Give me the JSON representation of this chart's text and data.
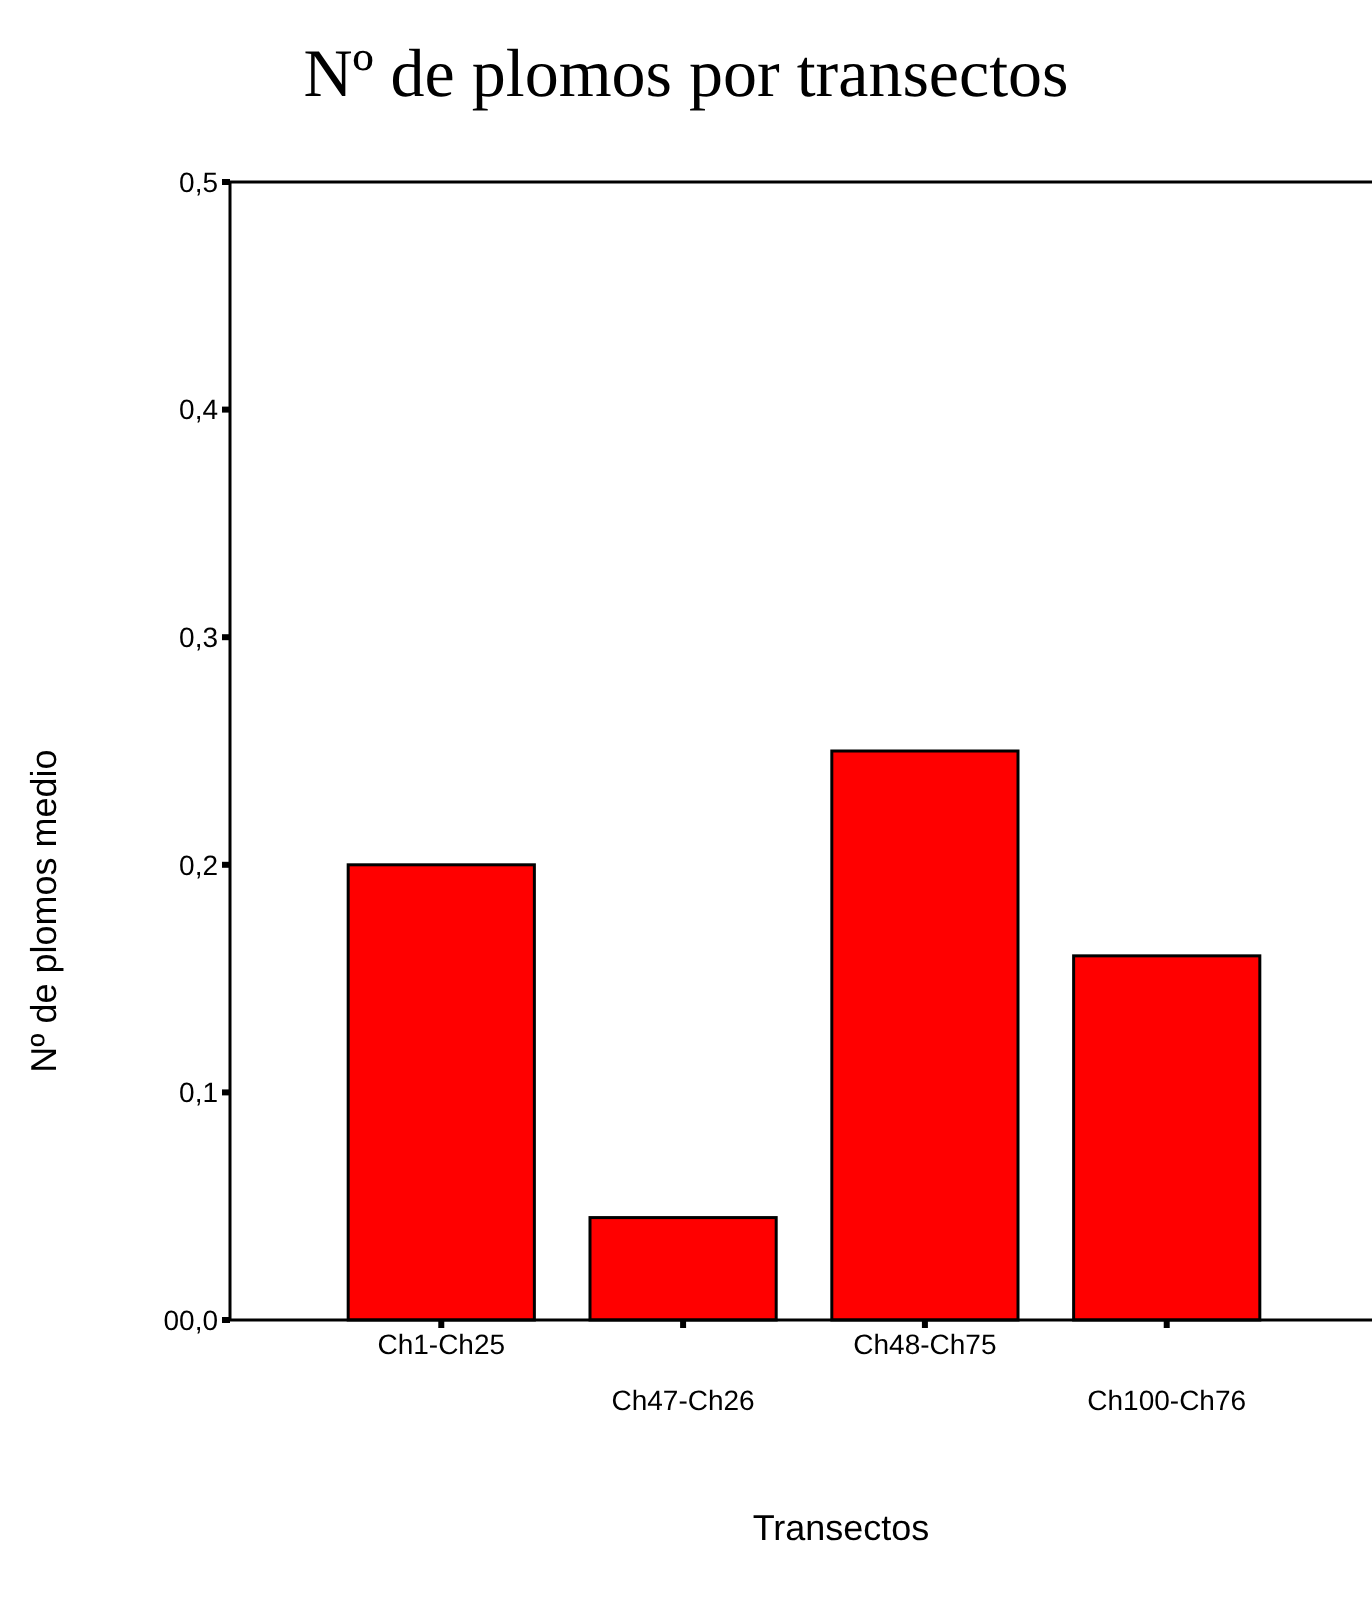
{
  "chart_data": {
    "type": "bar",
    "title": "Nº de plomos por transectos",
    "xlabel": "Transectos",
    "ylabel": "Nº de plomos medio",
    "categories": [
      "Ch1-Ch25",
      "Ch47-Ch26",
      "Ch48-Ch75",
      "Ch100-Ch76"
    ],
    "values": [
      0.2,
      0.045,
      0.25,
      0.16
    ],
    "color": "#ff0000",
    "ylim": [
      0,
      0.5
    ],
    "yticks": [
      {
        "value": 0,
        "label": "00,0"
      },
      {
        "value": 0.1,
        "label": "0,1"
      },
      {
        "value": 0.2,
        "label": "0,2"
      },
      {
        "value": 0.3,
        "label": "0,3"
      },
      {
        "value": 0.4,
        "label": "0,4"
      },
      {
        "value": 0.5,
        "label": "0,5"
      }
    ],
    "grid": false
  }
}
